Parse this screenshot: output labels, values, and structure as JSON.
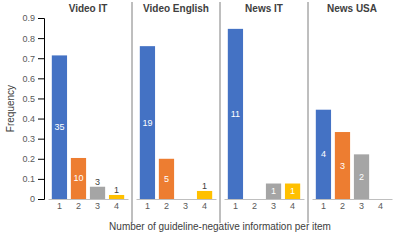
{
  "chart_data": {
    "type": "bar",
    "xlabel": "Number of guideline-negative information per item",
    "ylabel": "Frequency",
    "categories": [
      "1",
      "2",
      "3",
      "4"
    ],
    "colors": [
      "#4472c4",
      "#ed7d31",
      "#a5a5a5",
      "#ffc000"
    ],
    "ylim": [
      0,
      0.9
    ],
    "yticks": [
      0,
      0.1,
      0.2,
      0.3,
      0.4,
      0.5,
      0.6,
      0.7,
      0.8,
      0.9
    ],
    "panels": [
      {
        "title": "Video IT",
        "values": [
          0.714,
          0.204,
          0.061,
          0.02
        ],
        "counts": [
          35,
          10,
          3,
          1
        ]
      },
      {
        "title": "Video English",
        "values": [
          0.76,
          0.2,
          0,
          0.04
        ],
        "counts": [
          19,
          5,
          null,
          1
        ]
      },
      {
        "title": "News IT",
        "values": [
          0.846,
          0,
          0.077,
          0.077
        ],
        "counts": [
          11,
          null,
          1,
          1
        ]
      },
      {
        "title": "News USA",
        "values": [
          0.444,
          0.333,
          0.222,
          0
        ],
        "counts": [
          4,
          3,
          2,
          null
        ]
      }
    ]
  }
}
